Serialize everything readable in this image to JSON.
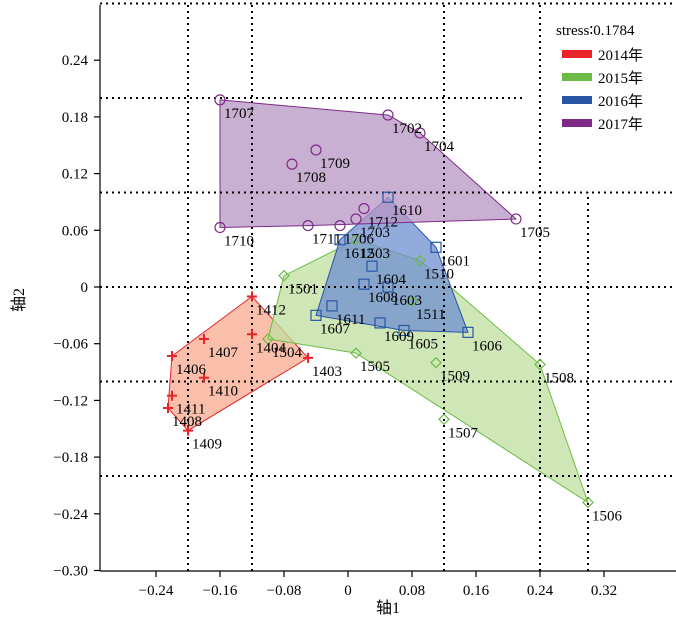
{
  "chart_data": {
    "type": "scatter",
    "xlabel": "轴1",
    "ylabel": "轴2",
    "xlim": [
      -0.3,
      0.4
    ],
    "ylim": [
      -0.3,
      0.3
    ],
    "xticks": [
      -0.24,
      -0.16,
      -0.08,
      0,
      0.08,
      0.16,
      0.24,
      0.32
    ],
    "xtick_labels": [
      "−0.24",
      "−0.16",
      "−0.08",
      "0",
      "0.08",
      "0.16",
      "0.24",
      "0.32"
    ],
    "yticks": [
      -0.3,
      -0.24,
      -0.18,
      -0.12,
      -0.06,
      0,
      0.06,
      0.12,
      0.18,
      0.24
    ],
    "ytick_labels": [
      "−0.30",
      "−0.24",
      "−0.18",
      "−0.12",
      "−0.06",
      "0",
      "0.06",
      "0.12",
      "0.18",
      "0.24"
    ],
    "dotted_vlines": [
      -0.2,
      -0.12,
      0.12,
      0.24,
      0.3
    ],
    "dotted_hlines": [
      -0.2,
      -0.1,
      0,
      0.1,
      0.2,
      0.3
    ],
    "stress_label": "stress∶0.1784",
    "legend_position": "top-right",
    "series": [
      {
        "name": "2014年",
        "marker": "plus",
        "color": "#e8232a",
        "fill": "#f7a98e",
        "hull": [
          "1412",
          "1403",
          "1409",
          "1408",
          "1406"
        ],
        "points": [
          {
            "label": "1412",
            "x": -0.12,
            "y": -0.01
          },
          {
            "label": "1407",
            "x": -0.18,
            "y": -0.055
          },
          {
            "label": "1404",
            "x": -0.12,
            "y": -0.05
          },
          {
            "label": "1403",
            "x": -0.05,
            "y": -0.075
          },
          {
            "label": "1406",
            "x": -0.22,
            "y": -0.073
          },
          {
            "label": "1410",
            "x": -0.18,
            "y": -0.096
          },
          {
            "label": "1411",
            "x": -0.22,
            "y": -0.115
          },
          {
            "label": "1408",
            "x": -0.225,
            "y": -0.128
          },
          {
            "label": "1409",
            "x": -0.2,
            "y": -0.152
          }
        ]
      },
      {
        "name": "2015年",
        "marker": "diamond",
        "color": "#6dbb45",
        "fill": "#bfdf9f",
        "hull": [
          "1501",
          "1503",
          "1510",
          "1508",
          "1506",
          "1505",
          "1504"
        ],
        "points": [
          {
            "label": "1501",
            "x": -0.08,
            "y": 0.012
          },
          {
            "label": "1503",
            "x": 0.01,
            "y": 0.05
          },
          {
            "label": "1510",
            "x": 0.09,
            "y": 0.028
          },
          {
            "label": "1511",
            "x": 0.08,
            "y": -0.015
          },
          {
            "label": "1504",
            "x": -0.1,
            "y": -0.055
          },
          {
            "label": "1505",
            "x": 0.01,
            "y": -0.07
          },
          {
            "label": "1509",
            "x": 0.11,
            "y": -0.08
          },
          {
            "label": "1508",
            "x": 0.24,
            "y": -0.082
          },
          {
            "label": "1507",
            "x": 0.12,
            "y": -0.14
          },
          {
            "label": "1506",
            "x": 0.3,
            "y": -0.228
          }
        ]
      },
      {
        "name": "2016年",
        "marker": "square",
        "color": "#2856a5",
        "fill": "#6f8fd0",
        "hull": [
          "1610",
          "1601",
          "1606",
          "1605",
          "1607",
          "1612"
        ],
        "points": [
          {
            "label": "1610",
            "x": 0.05,
            "y": 0.095
          },
          {
            "label": "1601",
            "x": 0.11,
            "y": 0.042
          },
          {
            "label": "1612",
            "x": -0.01,
            "y": 0.05
          },
          {
            "label": "1604",
            "x": 0.03,
            "y": 0.022
          },
          {
            "label": "1608",
            "x": 0.02,
            "y": 0.003
          },
          {
            "label": "1603",
            "x": 0.05,
            "y": 0.0
          },
          {
            "label": "1611",
            "x": -0.02,
            "y": -0.02
          },
          {
            "label": "1607",
            "x": -0.04,
            "y": -0.03
          },
          {
            "label": "1609",
            "x": 0.04,
            "y": -0.038
          },
          {
            "label": "1605",
            "x": 0.07,
            "y": -0.046
          },
          {
            "label": "1606",
            "x": 0.15,
            "y": -0.048
          }
        ]
      },
      {
        "name": "2017年",
        "marker": "circle",
        "color": "#7d2b86",
        "fill": "#b795c4",
        "hull": [
          "1707",
          "1702",
          "1704",
          "1705",
          "1711",
          "1710"
        ],
        "points": [
          {
            "label": "1707",
            "x": -0.16,
            "y": 0.198
          },
          {
            "label": "1702",
            "x": 0.05,
            "y": 0.182
          },
          {
            "label": "1704",
            "x": 0.09,
            "y": 0.163
          },
          {
            "label": "1709",
            "x": -0.04,
            "y": 0.145
          },
          {
            "label": "1708",
            "x": -0.07,
            "y": 0.13
          },
          {
            "label": "1712",
            "x": 0.02,
            "y": 0.083
          },
          {
            "label": "1703",
            "x": 0.01,
            "y": 0.072
          },
          {
            "label": "1705",
            "x": 0.21,
            "y": 0.072
          },
          {
            "label": "1706",
            "x": -0.01,
            "y": 0.065
          },
          {
            "label": "1711",
            "x": -0.05,
            "y": 0.065
          },
          {
            "label": "1710",
            "x": -0.16,
            "y": 0.063
          }
        ]
      }
    ]
  }
}
